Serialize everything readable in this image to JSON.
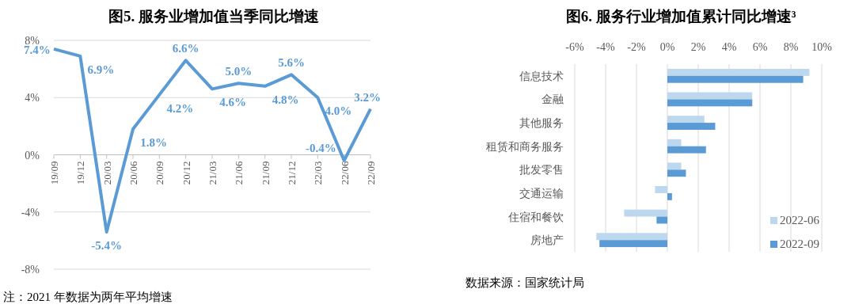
{
  "chart_data": [
    {
      "type": "line",
      "title": "图5.    服务业增加值当季同比增速",
      "categories": [
        "19/09",
        "19/12",
        "20/03",
        "20/06",
        "20/09",
        "20/12",
        "21/03",
        "21/06",
        "21/09",
        "21/12",
        "22/03",
        "22/06",
        "22/09"
      ],
      "series": [
        {
          "color": "#5b9bd5",
          "values": [
            7.4,
            6.9,
            -5.4,
            1.8,
            4.2,
            6.6,
            4.6,
            5.0,
            4.8,
            5.6,
            4.0,
            -0.4,
            3.2
          ],
          "value_labels": [
            "7.4%",
            "6.9%",
            "-5.4%",
            "1.8%",
            "4.2%",
            "6.6%",
            "4.6%",
            "5.0%",
            "4.8%",
            "5.6%",
            "4.0%",
            "-0.4%",
            "3.2%"
          ]
        }
      ],
      "ylim": [
        -8,
        8
      ],
      "yticks": [
        {
          "value": -8,
          "label": "-8%"
        },
        {
          "value": -4,
          "label": "-4%"
        },
        {
          "value": 0,
          "label": "0%"
        },
        {
          "value": 4,
          "label": "4%"
        },
        {
          "value": 8,
          "label": "8%"
        }
      ],
      "grid": "y",
      "annotations": [
        "注：2021 年数据为两年平均增速"
      ]
    },
    {
      "type": "bar",
      "orientation": "horizontal",
      "title": "图6.    服务行业增加值累计同比增速³",
      "categories": [
        "信息技术",
        "金融",
        "其他服务",
        "租赁和商务服务",
        "批发零售",
        "交通运输",
        "住宿和餐饮",
        "房地产"
      ],
      "series": [
        {
          "name": "2022-06",
          "color": "#bdd7ee",
          "values": [
            9.2,
            5.5,
            2.4,
            0.9,
            0.9,
            -0.8,
            -2.8,
            -4.6
          ]
        },
        {
          "name": "2022-09",
          "color": "#5b9bd5",
          "values": [
            8.8,
            5.5,
            3.1,
            2.5,
            1.2,
            0.3,
            -0.7,
            -4.4
          ]
        }
      ],
      "xlim": [
        -6,
        10
      ],
      "xticks": [
        {
          "value": -6,
          "label": "-6%"
        },
        {
          "value": -4,
          "label": "-4%"
        },
        {
          "value": -2,
          "label": "-2%"
        },
        {
          "value": 0,
          "label": "0%"
        },
        {
          "value": 2,
          "label": "2%"
        },
        {
          "value": 4,
          "label": "4%"
        },
        {
          "value": 6,
          "label": "6%"
        },
        {
          "value": 8,
          "label": "8%"
        },
        {
          "value": 10,
          "label": "10%"
        }
      ],
      "grid": "x",
      "legend": "bottom right",
      "annotations": [
        "数据来源：国家统计局"
      ]
    }
  ]
}
